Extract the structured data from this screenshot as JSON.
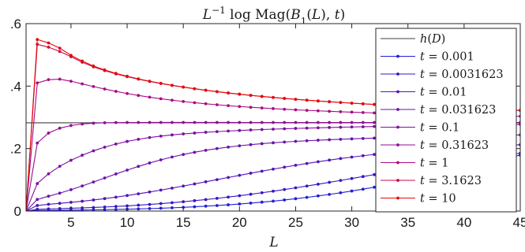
{
  "chart_data": {
    "type": "line",
    "title": "L⁻¹ log Mag(B₁(L), t)",
    "xlabel": "L",
    "ylabel": "",
    "xlim": [
      1,
      45
    ],
    "ylim": [
      0,
      0.6
    ],
    "x_ticks": [
      5,
      10,
      15,
      20,
      25,
      30,
      35,
      40,
      45
    ],
    "x_tick_labels": [
      "5",
      "10",
      "15",
      "20",
      "25",
      "30",
      "35",
      "40",
      "45"
    ],
    "y_ticks": [
      0,
      0.2,
      0.4,
      0.6
    ],
    "y_tick_labels": [
      "0",
      ".2",
      ".4",
      ".6"
    ],
    "grid": false,
    "legend_position": "top-right",
    "hline": {
      "name": "h(D)",
      "value": 0.2825,
      "color": "#404040"
    },
    "x": [
      1,
      2,
      3,
      4,
      5,
      6,
      7,
      8,
      9,
      10,
      11,
      12,
      13,
      14,
      15,
      16,
      17,
      18,
      19,
      20,
      21,
      22,
      23,
      24,
      25,
      26,
      27,
      28,
      29,
      30,
      31,
      32,
      33,
      34,
      35,
      36,
      37,
      38,
      39,
      40,
      41,
      42,
      43,
      44,
      45
    ],
    "series": [
      {
        "name": "t = 0.001",
        "color": "#1f1fd8",
        "values": [
          0.0,
          0.0018,
          0.0023,
          0.0026,
          0.0029,
          0.0033,
          0.0038,
          0.0044,
          0.0051,
          0.0059,
          0.0068,
          0.0079,
          0.0091,
          0.0104,
          0.0119,
          0.0137,
          0.0156,
          0.0177,
          0.02,
          0.0226,
          0.0254,
          0.0285,
          0.0318,
          0.0355,
          0.0395,
          0.0438,
          0.0484,
          0.0533,
          0.0585,
          0.0641,
          0.07,
          0.0762,
          0.0828,
          0.0896,
          0.0968,
          0.1042,
          0.112,
          0.1199,
          0.1281,
          0.1364,
          0.1449,
          0.1534,
          0.162,
          0.1706,
          0.1791
        ]
      },
      {
        "name": "t = 0.0031623",
        "color": "#3616c8",
        "values": [
          0.0,
          0.0056,
          0.0069,
          0.0079,
          0.0089,
          0.01,
          0.0114,
          0.0129,
          0.0147,
          0.0166,
          0.0188,
          0.0212,
          0.0238,
          0.0267,
          0.0298,
          0.0332,
          0.0368,
          0.0407,
          0.0448,
          0.0491,
          0.0537,
          0.0586,
          0.0636,
          0.0689,
          0.0744,
          0.0801,
          0.0859,
          0.0919,
          0.098,
          0.1042,
          0.1104,
          0.1166,
          0.1229,
          0.129,
          0.1351,
          0.1411,
          0.1469,
          0.1525,
          0.1579,
          0.1631,
          0.1681,
          0.1727,
          0.1771,
          0.1812,
          0.185
        ]
      },
      {
        "name": "t = 0.01",
        "color": "#5214b9",
        "values": [
          0.0,
          0.0178,
          0.0216,
          0.0247,
          0.0279,
          0.0314,
          0.0354,
          0.0398,
          0.0445,
          0.0497,
          0.0552,
          0.061,
          0.0671,
          0.0735,
          0.0801,
          0.0868,
          0.0937,
          0.1006,
          0.1075,
          0.1143,
          0.1211,
          0.1277,
          0.1342,
          0.1404,
          0.1465,
          0.1523,
          0.1578,
          0.1631,
          0.1681,
          0.1727,
          0.1771,
          0.1812,
          0.185,
          0.1885,
          0.1918,
          0.1947,
          0.1975,
          0.2,
          0.2023,
          0.2043,
          0.2062,
          0.2079,
          0.2095,
          0.2109,
          0.2122
        ]
      },
      {
        "name": "t = 0.031623",
        "color": "#6a12ac",
        "values": [
          0.0,
          0.0372,
          0.0475,
          0.0573,
          0.0683,
          0.0803,
          0.0929,
          0.1058,
          0.1187,
          0.1311,
          0.1429,
          0.1539,
          0.1639,
          0.173,
          0.1811,
          0.1882,
          0.1945,
          0.2,
          0.2047,
          0.2089,
          0.2125,
          0.2157,
          0.2185,
          0.2209,
          0.2231,
          0.225,
          0.2268,
          0.2283,
          0.2298,
          0.2311,
          0.2323,
          0.2334,
          0.2345,
          0.2355,
          0.2364,
          0.2373,
          0.2382,
          0.239,
          0.2398,
          0.2405,
          0.2413,
          0.2419,
          0.2426,
          0.2432,
          0.2438
        ]
      },
      {
        "name": "t = 0.1",
        "color": "#7d10a1",
        "values": [
          0.0,
          0.088,
          0.1192,
          0.1433,
          0.1625,
          0.1788,
          0.1927,
          0.2046,
          0.2146,
          0.2229,
          0.2297,
          0.2353,
          0.2399,
          0.2437,
          0.2469,
          0.2497,
          0.2522,
          0.2543,
          0.2562,
          0.2579,
          0.2595,
          0.2609,
          0.2622,
          0.2634,
          0.2645,
          0.2655,
          0.2665,
          0.2674,
          0.2683,
          0.2691,
          0.2698,
          0.2706,
          0.2712,
          0.2719,
          0.2725,
          0.2731,
          0.2737,
          0.2742,
          0.2747,
          0.2752,
          0.2757,
          0.2762,
          0.2766,
          0.277,
          0.2774
        ]
      },
      {
        "name": "t = 0.31623",
        "color": "#900e95",
        "values": [
          0.0,
          0.2178,
          0.2497,
          0.2652,
          0.2738,
          0.2786,
          0.2812,
          0.2826,
          0.2832,
          0.2835,
          0.2836,
          0.2837,
          0.2837,
          0.2837,
          0.2837,
          0.2837,
          0.2837,
          0.2837,
          0.2837,
          0.2836,
          0.2836,
          0.2836,
          0.2836,
          0.2836,
          0.2836,
          0.2836,
          0.2835,
          0.2835,
          0.2835,
          0.2835,
          0.2835,
          0.2835,
          0.2835,
          0.2835,
          0.2835,
          0.2835,
          0.2834,
          0.2834,
          0.2834,
          0.2834,
          0.2834,
          0.2834,
          0.2834,
          0.2834,
          0.2834
        ]
      },
      {
        "name": "t = 1",
        "color": "#a80c83",
        "values": [
          0.0,
          0.4102,
          0.4206,
          0.4222,
          0.4156,
          0.407,
          0.3986,
          0.3906,
          0.3831,
          0.3763,
          0.3701,
          0.3645,
          0.3595,
          0.3549,
          0.3507,
          0.3469,
          0.3434,
          0.3403,
          0.3374,
          0.3347,
          0.3322,
          0.33,
          0.3279,
          0.3259,
          0.3241,
          0.3224,
          0.3208,
          0.3193,
          0.3179,
          0.3166,
          0.3154,
          0.3142,
          0.3131,
          0.3121,
          0.3111,
          0.3101,
          0.3092,
          0.3084,
          0.3076,
          0.3068,
          0.3061,
          0.3054,
          0.3047,
          0.3041,
          0.3034
        ]
      },
      {
        "name": "t = 3.1623",
        "color": "#cc0844",
        "values": [
          0.0,
          0.5337,
          0.5246,
          0.5108,
          0.4941,
          0.4765,
          0.4617,
          0.4496,
          0.4391,
          0.4302,
          0.4222,
          0.4149,
          0.4083,
          0.4022,
          0.3966,
          0.3914,
          0.3866,
          0.3821,
          0.3779,
          0.3739,
          0.3703,
          0.3668,
          0.3636,
          0.3605,
          0.3576,
          0.3549,
          0.3523,
          0.3499,
          0.3476,
          0.3454,
          0.3433,
          0.3413,
          0.3394,
          0.3376,
          0.3359,
          0.3342,
          0.3327,
          0.3312,
          0.3297,
          0.3284,
          0.327,
          0.3258,
          0.3246,
          0.3234,
          0.3223
        ]
      },
      {
        "name": "t = 10",
        "color": "#e60a0a",
        "values": [
          0.0,
          0.5492,
          0.5381,
          0.5215,
          0.4985,
          0.4801,
          0.4645,
          0.4518,
          0.4409,
          0.4316,
          0.4232,
          0.4157,
          0.4089,
          0.4027,
          0.397,
          0.3918,
          0.3869,
          0.3824,
          0.3781,
          0.3742,
          0.3705,
          0.367,
          0.3637,
          0.3606,
          0.3577,
          0.355,
          0.3524,
          0.35,
          0.3476,
          0.3454,
          0.3433,
          0.3413,
          0.3394,
          0.3376,
          0.3359,
          0.3342,
          0.3327,
          0.3312,
          0.3297,
          0.3284,
          0.327,
          0.3258,
          0.3246,
          0.3234,
          0.3223
        ]
      }
    ]
  }
}
